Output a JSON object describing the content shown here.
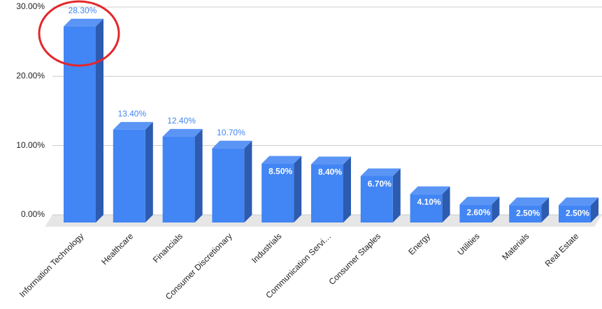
{
  "chart_data": {
    "type": "bar3d",
    "categories": [
      "Information Technology",
      "Healthcare",
      "Financials",
      "Consumer Discretionary",
      "Industrials",
      "Communication Servi…",
      "Consumer Staples",
      "Energy",
      "Utilities",
      "Materials",
      "Real Estate"
    ],
    "values": [
      28.3,
      13.4,
      12.4,
      10.7,
      8.5,
      8.4,
      6.7,
      4.1,
      2.6,
      2.5,
      2.5
    ],
    "value_labels": [
      "28.30%",
      "13.40%",
      "12.40%",
      "10.70%",
      "8.50%",
      "8.40%",
      "6.70%",
      "4.10%",
      "2.60%",
      "2.50%",
      "2.50%"
    ],
    "color": "#4285f4",
    "ylim": [
      0,
      30
    ],
    "yticks": [
      {
        "value": 0,
        "label": "0.00%"
      },
      {
        "value": 10,
        "label": "10.00%"
      },
      {
        "value": 20,
        "label": "20.00%"
      },
      {
        "value": 30,
        "label": "30.00%"
      }
    ],
    "grid": true
  }
}
